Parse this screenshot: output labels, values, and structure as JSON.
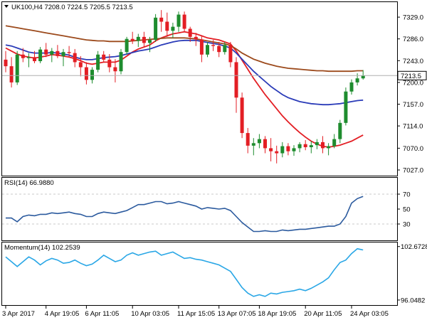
{
  "header": {
    "main": "UK100,H4  7208.0 7224.5 7205.5 7213.5",
    "rsi": "RSI(14) 66.9880",
    "momentum": "Momentum(14) 102.2539"
  },
  "colors": {
    "bull": "#1e8c2e",
    "bear": "#e31e24",
    "ma_fast": "#e31e24",
    "ma_mid": "#2a3bb8",
    "ma_slow": "#9c4a1c",
    "rsi_line": "#2b5a9e",
    "momentum_line": "#2aa7e6",
    "grid": "#c8c8c8"
  },
  "chart_data": [
    {
      "type": "candlestick",
      "symbol": "UK100",
      "timeframe": "H4",
      "x_tick_labels": [
        "3 Apr 2017",
        "4 Apr 19:05",
        "6 Apr 11:05",
        "10 Apr 03:05",
        "11 Apr 15:05",
        "13 Apr 07:05",
        "18 Apr 19:05",
        "20 Apr 11:05",
        "24 Apr 03:05"
      ],
      "y_tick_labels": [
        "7329.0",
        "7286.0",
        "7243.0",
        "7200.0",
        "7157.0",
        "7114.0",
        "7070.0",
        "7027.0"
      ],
      "ylim": [
        7020,
        7346
      ],
      "current_price": "7213.5",
      "current_price_value": 7213.5,
      "candles": [
        [
          7245,
          7262,
          7220,
          7232
        ],
        [
          7232,
          7250,
          7190,
          7200
        ],
        [
          7200,
          7262,
          7195,
          7255
        ],
        [
          7255,
          7268,
          7240,
          7248
        ],
        [
          7248,
          7258,
          7230,
          7250
        ],
        [
          7250,
          7262,
          7238,
          7242
        ],
        [
          7242,
          7270,
          7238,
          7265
        ],
        [
          7265,
          7278,
          7250,
          7255
        ],
        [
          7255,
          7268,
          7240,
          7262
        ],
        [
          7262,
          7274,
          7248,
          7252
        ],
        [
          7252,
          7266,
          7232,
          7260
        ],
        [
          7260,
          7272,
          7250,
          7258
        ],
        [
          7258,
          7266,
          7230,
          7240
        ],
        [
          7240,
          7252,
          7212,
          7230
        ],
        [
          7230,
          7240,
          7196,
          7205
        ],
        [
          7205,
          7230,
          7198,
          7225
        ],
        [
          7225,
          7262,
          7220,
          7255
        ],
        [
          7255,
          7262,
          7240,
          7245
        ],
        [
          7245,
          7256,
          7220,
          7230
        ],
        [
          7230,
          7246,
          7200,
          7222
        ],
        [
          7222,
          7266,
          7216,
          7260
        ],
        [
          7260,
          7290,
          7255,
          7286
        ],
        [
          7286,
          7300,
          7276,
          7282
        ],
        [
          7282,
          7296,
          7270,
          7290
        ],
        [
          7290,
          7300,
          7270,
          7278
        ],
        [
          7278,
          7290,
          7260,
          7284
        ],
        [
          7284,
          7335,
          7280,
          7328
        ],
        [
          7328,
          7343,
          7300,
          7320
        ],
        [
          7320,
          7338,
          7290,
          7302
        ],
        [
          7302,
          7318,
          7288,
          7310
        ],
        [
          7310,
          7340,
          7300,
          7334
        ],
        [
          7334,
          7340,
          7300,
          7306
        ],
        [
          7306,
          7310,
          7280,
          7290
        ],
        [
          7290,
          7298,
          7272,
          7285
        ],
        [
          7285,
          7292,
          7240,
          7255
        ],
        [
          7255,
          7280,
          7250,
          7274
        ],
        [
          7274,
          7284,
          7262,
          7272
        ],
        [
          7272,
          7280,
          7250,
          7260
        ],
        [
          7260,
          7280,
          7255,
          7274
        ],
        [
          7274,
          7280,
          7230,
          7240
        ],
        [
          7240,
          7250,
          7140,
          7170
        ],
        [
          7170,
          7180,
          7090,
          7100
        ],
        [
          7100,
          7110,
          7060,
          7075
        ],
        [
          7075,
          7090,
          7056,
          7080
        ],
        [
          7080,
          7098,
          7070,
          7088
        ],
        [
          7088,
          7094,
          7060,
          7070
        ],
        [
          7070,
          7090,
          7044,
          7064
        ],
        [
          7064,
          7075,
          7040,
          7060
        ],
        [
          7060,
          7082,
          7052,
          7074
        ],
        [
          7074,
          7080,
          7056,
          7064
        ],
        [
          7064,
          7076,
          7055,
          7070
        ],
        [
          7070,
          7082,
          7062,
          7078
        ],
        [
          7078,
          7086,
          7066,
          7072
        ],
        [
          7072,
          7084,
          7060,
          7076
        ],
        [
          7076,
          7088,
          7068,
          7082
        ],
        [
          7082,
          7094,
          7060,
          7070
        ],
        [
          7070,
          7080,
          7056,
          7074
        ],
        [
          7074,
          7098,
          7070,
          7088
        ],
        [
          7088,
          7126,
          7080,
          7120
        ],
        [
          7120,
          7190,
          7115,
          7182
        ],
        [
          7182,
          7206,
          7176,
          7200
        ],
        [
          7200,
          7218,
          7194,
          7208
        ],
        [
          7208,
          7224.5,
          7205.5,
          7213.5
        ]
      ],
      "moving_averages": [
        {
          "name": "MA fast",
          "values": [
            7268,
            7262,
            7256,
            7252,
            7250,
            7248,
            7250,
            7252,
            7255,
            7254,
            7252,
            7250,
            7247,
            7243,
            7238,
            7236,
            7238,
            7240,
            7240,
            7240,
            7244,
            7252,
            7260,
            7266,
            7270,
            7274,
            7282,
            7288,
            7292,
            7296,
            7298,
            7300,
            7298,
            7296,
            7292,
            7288,
            7286,
            7284,
            7280,
            7276,
            7262,
            7244,
            7226,
            7208,
            7192,
            7176,
            7162,
            7148,
            7134,
            7122,
            7111,
            7101,
            7092,
            7084,
            7078,
            7074,
            7072,
            7074,
            7076,
            7080,
            7084,
            7090,
            7096
          ]
        },
        {
          "name": "MA mid",
          "values": [
            7274,
            7272,
            7268,
            7264,
            7260,
            7258,
            7258,
            7258,
            7259,
            7258,
            7256,
            7254,
            7250,
            7247,
            7245,
            7245,
            7247,
            7249,
            7250,
            7251,
            7253,
            7256,
            7259,
            7262,
            7264,
            7266,
            7270,
            7274,
            7277,
            7280,
            7282,
            7283,
            7283,
            7283,
            7281,
            7279,
            7277,
            7275,
            7272,
            7268,
            7258,
            7246,
            7234,
            7222,
            7212,
            7202,
            7192,
            7184,
            7176,
            7170,
            7166,
            7162,
            7160,
            7158,
            7157,
            7156,
            7156,
            7157,
            7158,
            7160,
            7162,
            7164,
            7165
          ]
        },
        {
          "name": "MA slow",
          "values": [
            7312,
            7310,
            7308,
            7306,
            7304,
            7302,
            7300,
            7298,
            7296,
            7294,
            7292,
            7290,
            7288,
            7286,
            7284,
            7283,
            7282,
            7282,
            7281,
            7281,
            7281,
            7281,
            7282,
            7283,
            7284,
            7285,
            7286,
            7287,
            7288,
            7288,
            7288,
            7288,
            7287,
            7286,
            7284,
            7282,
            7280,
            7278,
            7276,
            7273,
            7266,
            7258,
            7252,
            7246,
            7242,
            7238,
            7235,
            7232,
            7230,
            7228,
            7227,
            7226,
            7225,
            7224,
            7223,
            7223,
            7222,
            7222,
            7222,
            7222,
            7222,
            7223,
            7223
          ]
        }
      ]
    },
    {
      "type": "line",
      "name": "RSI(14)",
      "y_tick_labels": [
        "70",
        "50",
        "30"
      ],
      "ylim": [
        10,
        90
      ],
      "levels": [
        70,
        30
      ],
      "values": [
        38,
        38,
        33,
        40,
        42,
        41,
        43,
        43,
        45,
        44,
        45,
        46,
        44,
        43,
        40,
        40,
        44,
        46,
        45,
        44,
        46,
        48,
        52,
        56,
        56,
        58,
        60,
        60,
        57,
        58,
        60,
        58,
        56,
        54,
        50,
        52,
        51,
        50,
        51,
        48,
        40,
        32,
        26,
        20,
        20,
        21,
        20,
        20,
        22,
        21,
        22,
        23,
        23,
        24,
        25,
        26,
        27,
        27,
        30,
        40,
        58,
        64,
        66.988
      ]
    },
    {
      "type": "line",
      "name": "Momentum(14)",
      "y_tick_labels": [
        "102.6728",
        "96.0482"
      ],
      "ylim": [
        95.6,
        103.0
      ],
      "values": [
        101.4,
        100.8,
        100.2,
        100.8,
        101.4,
        101.0,
        100.4,
        100.9,
        101.2,
        101.0,
        100.6,
        100.7,
        101.0,
        100.6,
        100.3,
        100.5,
        101.0,
        101.6,
        101.2,
        100.8,
        101.0,
        101.6,
        101.9,
        101.6,
        101.8,
        102.0,
        102.1,
        101.6,
        101.8,
        102.0,
        101.6,
        101.2,
        101.3,
        101.1,
        101.0,
        100.8,
        100.6,
        100.4,
        100.0,
        99.6,
        98.6,
        97.6,
        96.9,
        96.5,
        96.7,
        96.5,
        96.9,
        96.8,
        97.0,
        97.1,
        97.2,
        97.4,
        97.2,
        97.5,
        97.9,
        98.3,
        98.8,
        99.8,
        100.7,
        101.0,
        101.8,
        102.4,
        102.2539
      ]
    }
  ]
}
